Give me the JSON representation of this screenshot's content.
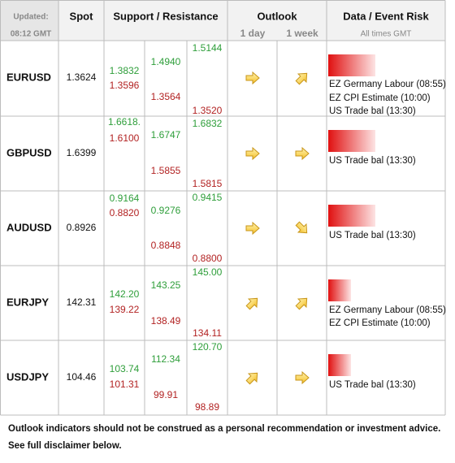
{
  "header": {
    "updated_label": "Updated:",
    "updated_time": "08:12 GMT",
    "spot": "Spot",
    "support_resistance": "Support / Resistance",
    "outlook": "Outlook",
    "outlook_1day": "1 day",
    "outlook_1week": "1 week",
    "event_risk": "Data / Event Risk",
    "event_risk_note": "All times GMT"
  },
  "rows": [
    {
      "pair": "EURUSD",
      "spot": "1.3624",
      "levels": [
        [
          "1.3832",
          "1.3596"
        ],
        [
          "1.4940",
          "1.3564"
        ],
        [
          "1.5144",
          "1.3520"
        ]
      ],
      "events": [
        "EZ Germany Labour (08:55)",
        "EZ CPI Estimate (10:00)",
        "US Trade bal (13:30)"
      ]
    },
    {
      "pair": "GBPUSD",
      "spot": "1.6399",
      "levels": [
        [
          "1.6618.",
          "1.6100"
        ],
        [
          "1.6747",
          "1.5855"
        ],
        [
          "1.6832",
          "1.5815"
        ]
      ],
      "events": [
        "US Trade bal (13:30)"
      ]
    },
    {
      "pair": "AUDUSD",
      "spot": "0.8926",
      "levels": [
        [
          "0.9164",
          "0.8820"
        ],
        [
          "0.9276",
          "0.8848"
        ],
        [
          "0.9415",
          "0.8800"
        ]
      ],
      "events": [
        "US Trade bal (13:30)"
      ]
    },
    {
      "pair": "EURJPY",
      "spot": "142.31",
      "levels": [
        [
          "142.20",
          "139.22"
        ],
        [
          "143.25",
          "138.49"
        ],
        [
          "145.00",
          "134.11"
        ]
      ],
      "events": [
        "EZ Germany Labour (08:55)",
        "EZ CPI Estimate (10:00)"
      ]
    },
    {
      "pair": "USDJPY",
      "spot": "104.46",
      "levels": [
        [
          "103.74",
          "101.31"
        ],
        [
          "112.34",
          "99.91"
        ],
        [
          "120.70",
          "98.89"
        ]
      ],
      "events": [
        "US Trade bal (13:30)"
      ]
    }
  ],
  "footer": [
    "Outlook indicators should not be construed as a personal recommendation or investment advice.",
    "See full disclaimer below."
  ]
}
